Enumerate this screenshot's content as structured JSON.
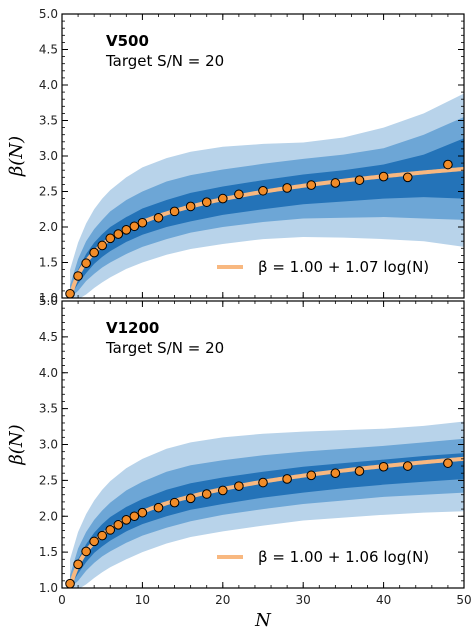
{
  "chart_data": [
    {
      "type": "line",
      "title": "V500",
      "subtitle": "Target S/N = 20",
      "xlabel": "",
      "ylabel": "β(N)",
      "xlim": [
        0,
        50
      ],
      "ylim": [
        1.0,
        5.0
      ],
      "xticks": [
        0,
        10,
        20,
        30,
        40,
        50
      ],
      "yticks": [
        1.0,
        1.5,
        2.0,
        2.5,
        3.0,
        3.5,
        4.0,
        4.5,
        5.0
      ],
      "fit": {
        "a": 1.0,
        "b": 1.07,
        "label": "β = 1.00 + 1.07 log(N)"
      },
      "points": {
        "x": [
          1,
          2,
          3,
          4,
          5,
          6,
          7,
          8,
          9,
          10,
          12,
          14,
          16,
          18,
          20,
          22,
          25,
          28,
          31,
          34,
          37,
          40,
          43,
          48
        ],
        "y": [
          1.06,
          1.31,
          1.49,
          1.64,
          1.74,
          1.84,
          1.9,
          1.96,
          2.01,
          2.06,
          2.13,
          2.22,
          2.29,
          2.35,
          2.4,
          2.46,
          2.51,
          2.55,
          2.59,
          2.62,
          2.66,
          2.71,
          2.7,
          2.88
        ]
      },
      "bands": {
        "x": [
          1,
          2,
          3,
          4,
          5,
          6,
          8,
          10,
          13,
          16,
          20,
          25,
          30,
          35,
          40,
          45,
          50
        ],
        "outer_lo": [
          0.97,
          0.98,
          1.05,
          1.14,
          1.22,
          1.29,
          1.41,
          1.5,
          1.61,
          1.69,
          1.76,
          1.83,
          1.86,
          1.85,
          1.83,
          1.8,
          1.72
        ],
        "outer_hi": [
          1.4,
          1.78,
          2.05,
          2.25,
          2.4,
          2.52,
          2.7,
          2.84,
          2.97,
          3.06,
          3.13,
          3.17,
          3.19,
          3.26,
          3.4,
          3.6,
          3.88
        ],
        "mid_lo": [
          1.0,
          1.1,
          1.24,
          1.34,
          1.43,
          1.5,
          1.62,
          1.72,
          1.83,
          1.92,
          2.0,
          2.07,
          2.12,
          2.13,
          2.14,
          2.12,
          2.1
        ],
        "mid_hi": [
          1.18,
          1.55,
          1.8,
          1.97,
          2.1,
          2.22,
          2.38,
          2.5,
          2.64,
          2.73,
          2.81,
          2.89,
          2.96,
          3.02,
          3.11,
          3.3,
          3.55
        ],
        "inner_lo": [
          1.02,
          1.2,
          1.35,
          1.48,
          1.58,
          1.66,
          1.79,
          1.89,
          2.0,
          2.08,
          2.17,
          2.25,
          2.32,
          2.36,
          2.4,
          2.42,
          2.4
        ],
        "inner_hi": [
          1.1,
          1.4,
          1.62,
          1.78,
          1.9,
          2.0,
          2.14,
          2.26,
          2.38,
          2.48,
          2.57,
          2.66,
          2.74,
          2.8,
          2.88,
          3.02,
          3.25
        ]
      },
      "legend_position": "lower-right",
      "colors": {
        "outer": "#b8d3ea",
        "mid": "#6da6d6",
        "inner": "#2473b8",
        "fit": "#f8b880",
        "marker": "#f28c28",
        "marker_edge": "#000000"
      }
    },
    {
      "type": "line",
      "title": "V1200",
      "subtitle": "Target S/N = 20",
      "xlabel": "N",
      "ylabel": "β(N)",
      "xlim": [
        0,
        50
      ],
      "ylim": [
        1.0,
        5.0
      ],
      "xticks": [
        0,
        10,
        20,
        30,
        40,
        50
      ],
      "yticks": [
        1.0,
        1.5,
        2.0,
        2.5,
        3.0,
        3.5,
        4.0,
        4.5,
        5.0
      ],
      "fit": {
        "a": 1.0,
        "b": 1.06,
        "label": "β = 1.00 + 1.06 log(N)"
      },
      "points": {
        "x": [
          1,
          2,
          3,
          4,
          5,
          6,
          7,
          8,
          9,
          10,
          12,
          14,
          16,
          18,
          20,
          22,
          25,
          28,
          31,
          34,
          37,
          40,
          43,
          48
        ],
        "y": [
          1.06,
          1.33,
          1.51,
          1.65,
          1.73,
          1.81,
          1.88,
          1.95,
          2.0,
          2.05,
          2.12,
          2.19,
          2.25,
          2.31,
          2.36,
          2.42,
          2.47,
          2.52,
          2.57,
          2.6,
          2.63,
          2.69,
          2.7,
          2.74
        ]
      },
      "bands": {
        "x": [
          1,
          2,
          3,
          4,
          5,
          6,
          8,
          10,
          13,
          16,
          20,
          25,
          30,
          35,
          40,
          45,
          50
        ],
        "outer_lo": [
          0.97,
          0.98,
          1.05,
          1.14,
          1.22,
          1.29,
          1.4,
          1.5,
          1.62,
          1.71,
          1.79,
          1.87,
          1.94,
          1.98,
          2.02,
          2.05,
          2.07
        ],
        "outer_hi": [
          1.4,
          1.78,
          2.03,
          2.22,
          2.37,
          2.49,
          2.67,
          2.8,
          2.94,
          3.03,
          3.1,
          3.15,
          3.18,
          3.2,
          3.22,
          3.26,
          3.32
        ],
        "mid_lo": [
          1.0,
          1.1,
          1.24,
          1.35,
          1.44,
          1.51,
          1.63,
          1.73,
          1.84,
          1.93,
          2.02,
          2.1,
          2.17,
          2.22,
          2.27,
          2.3,
          2.33
        ],
        "mid_hi": [
          1.18,
          1.55,
          1.78,
          1.95,
          2.08,
          2.19,
          2.36,
          2.48,
          2.62,
          2.71,
          2.78,
          2.85,
          2.9,
          2.94,
          2.98,
          3.03,
          3.08
        ],
        "inner_lo": [
          1.02,
          1.2,
          1.36,
          1.49,
          1.58,
          1.66,
          1.79,
          1.89,
          2.0,
          2.09,
          2.17,
          2.26,
          2.33,
          2.39,
          2.44,
          2.48,
          2.52
        ],
        "inner_hi": [
          1.1,
          1.4,
          1.61,
          1.77,
          1.89,
          1.99,
          2.13,
          2.24,
          2.37,
          2.46,
          2.54,
          2.62,
          2.69,
          2.74,
          2.79,
          2.84,
          2.88
        ]
      },
      "legend_position": "lower-right",
      "colors": {
        "outer": "#b8d3ea",
        "mid": "#6da6d6",
        "inner": "#2473b8",
        "fit": "#f8b880",
        "marker": "#f28c28",
        "marker_edge": "#000000"
      }
    }
  ]
}
